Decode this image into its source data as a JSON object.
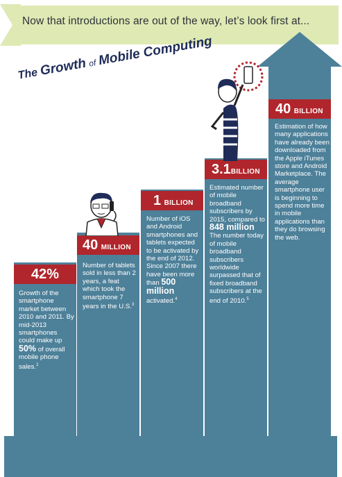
{
  "banner": {
    "text": "Now that introductions are out of the way, let’s look first at..."
  },
  "title": {
    "the": "The",
    "growth": "Growth",
    "of": "of",
    "mobile": "Mobile Computing"
  },
  "columns": [
    {
      "big": "42%",
      "small": "",
      "desc": "Growth of the smartphone market between 2010 and 2011. By mid-2013 smartphones could make up",
      "highlight": "50%",
      "after": "of overall mobile phone sales.",
      "note": "2"
    },
    {
      "big": "40",
      "small": "MILLION",
      "desc": "Number of tablets sold in less than 2 years, a feat which took the smartphone 7 years in the U.S.",
      "note": "3"
    },
    {
      "big": "1",
      "small": "BILLION",
      "desc": "Number of iOS and Android smartphones and tablets expected to be activated by the end of 2012. Since 2007 there have been more than",
      "highlight": "500 million",
      "after": "activated.",
      "note": "4"
    },
    {
      "big": "3.1",
      "small": "BILLION",
      "desc": "Estimated number of mobile broadband subscribers by 2015, compared to",
      "highlight": "848 million",
      "after": "The number today of mobile broadband subscribers worldwide surpassed that of fixed broadband subscribers at the end of 2010.",
      "note": "5"
    },
    {
      "big": "40",
      "small": "BILLION",
      "desc": "Estimation of how many applications have already been downloaded from the Apple iTunes store and Android Marketplace. The average smartphone user is beginning to spend more time in mobile applications than they do browsing the web."
    }
  ],
  "colors": {
    "banner": "#dfe9b4",
    "column": "#4d8099",
    "label": "#b0262c",
    "title": "#1f2c58"
  }
}
